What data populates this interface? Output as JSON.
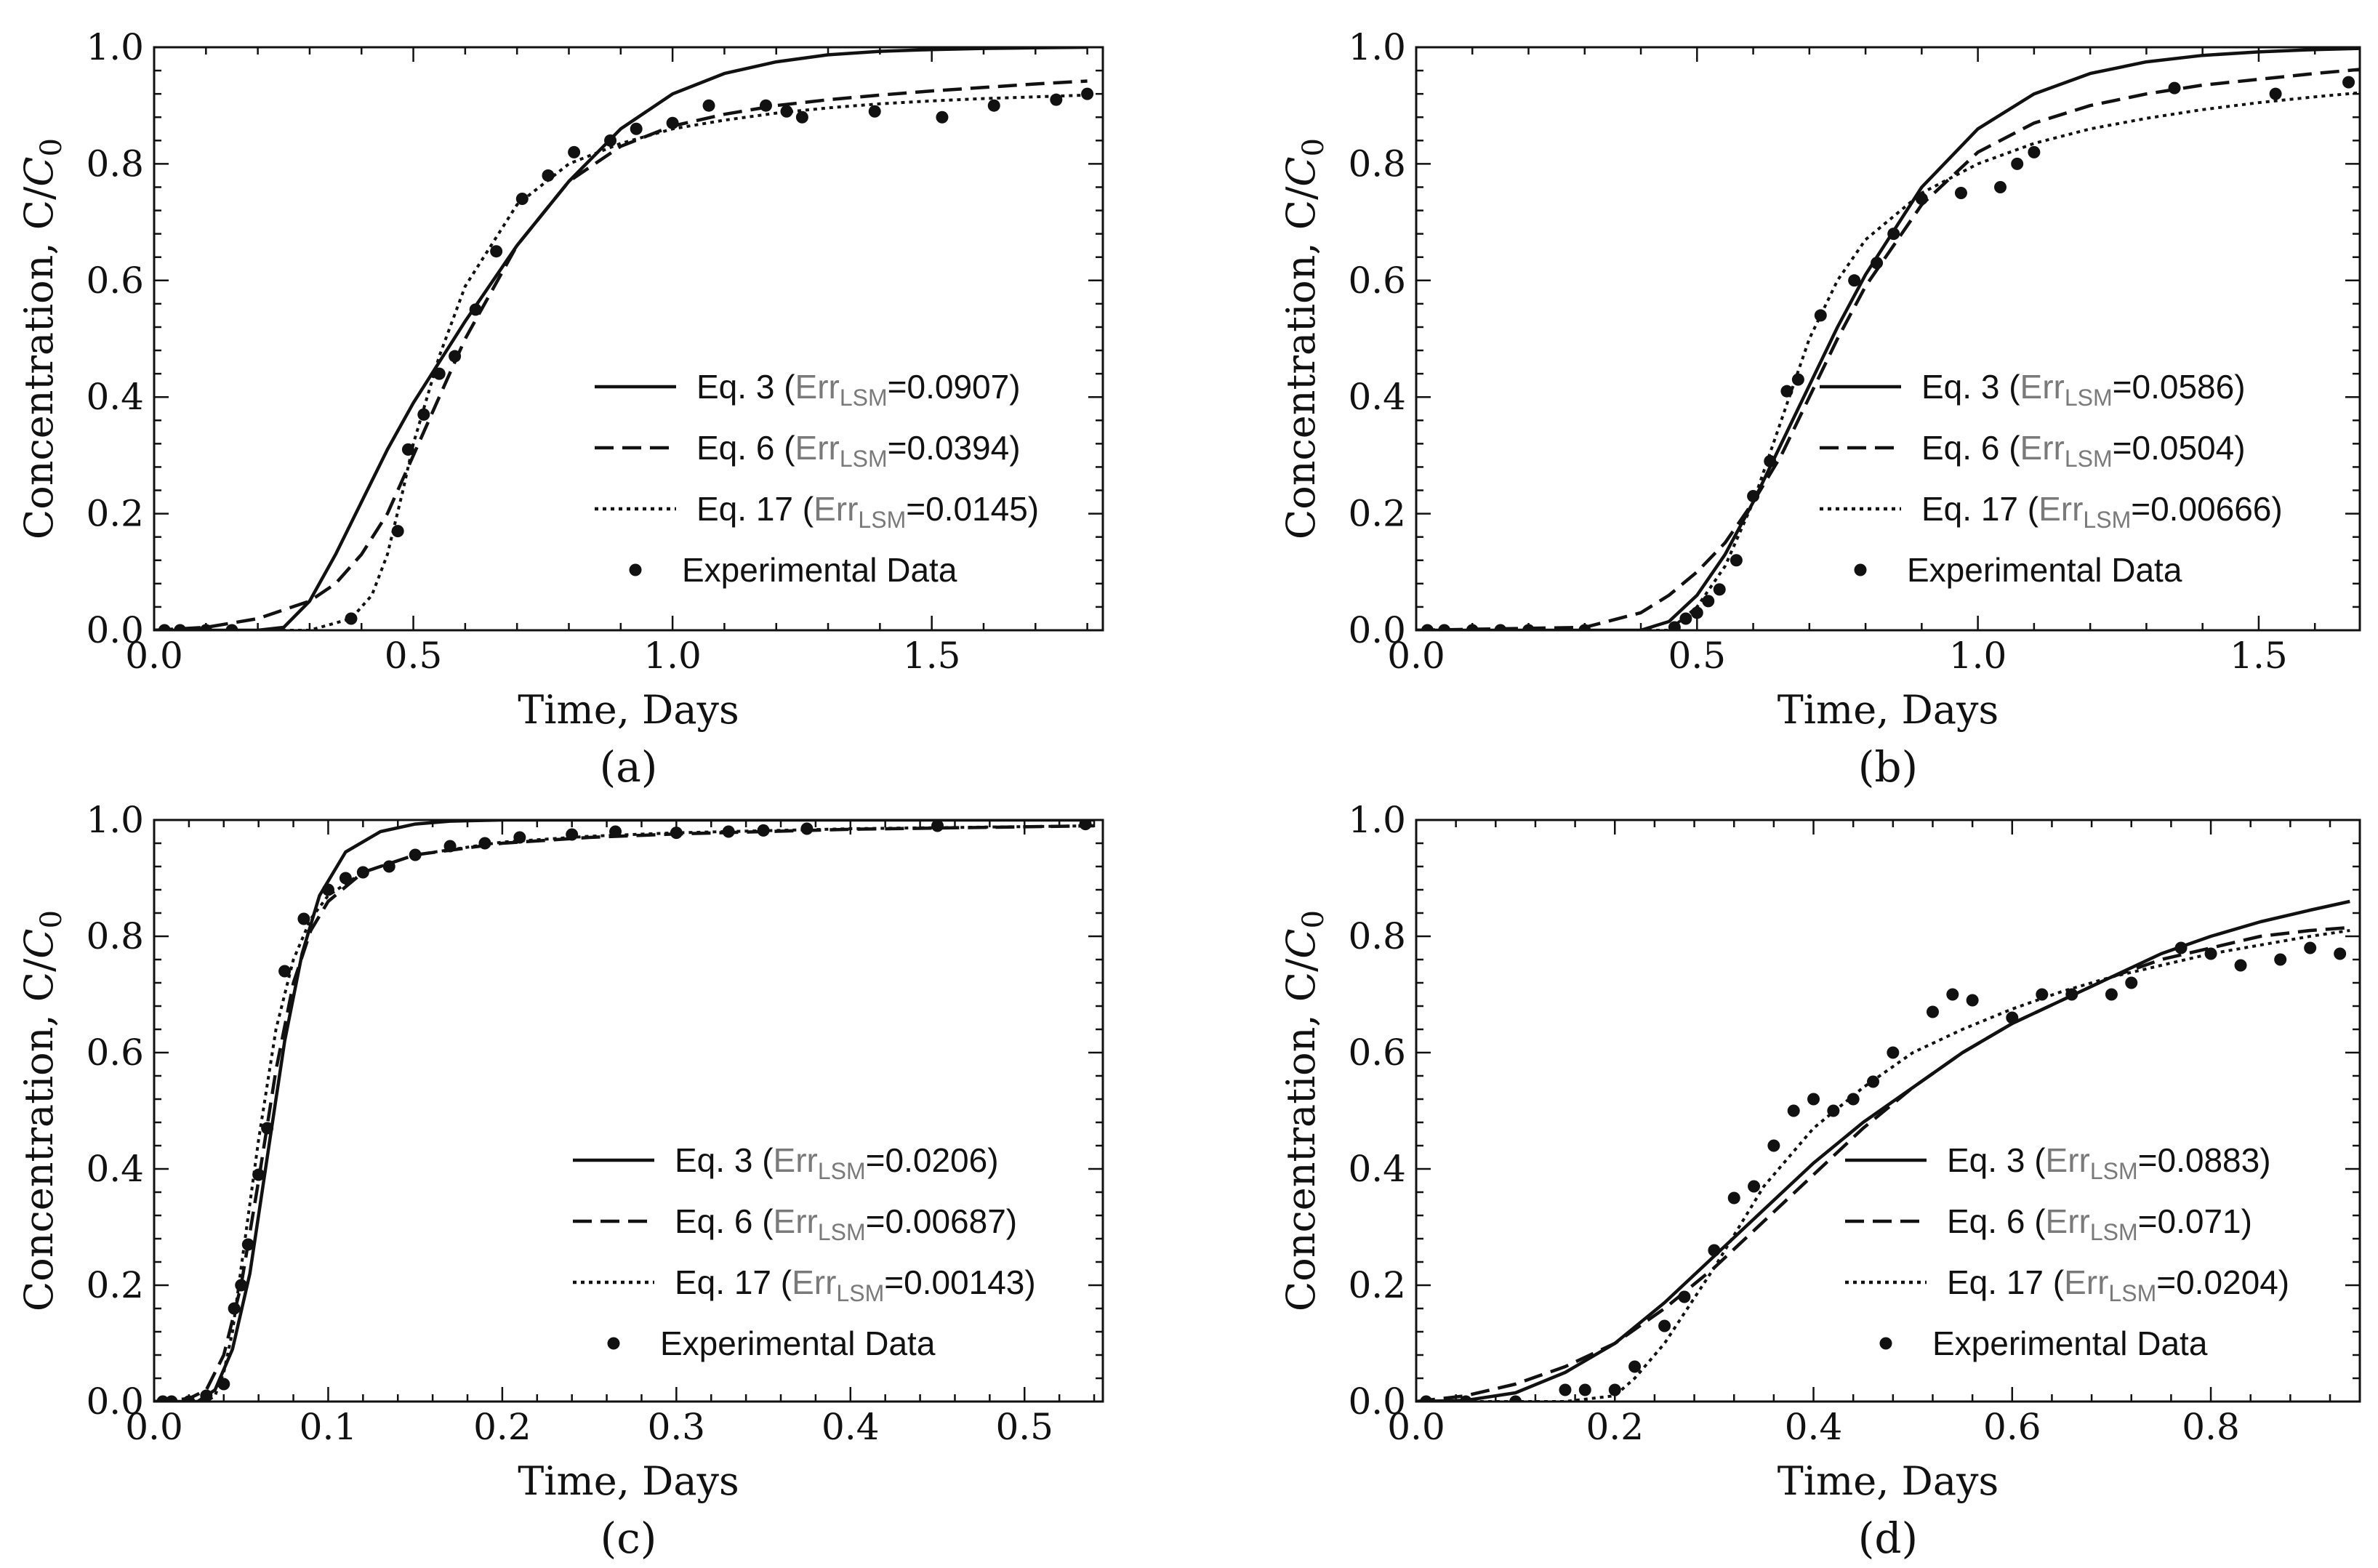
{
  "chart_data": [
    {
      "panel": "(a)",
      "type": "line",
      "xlabel": "Time, Days",
      "ylabel_text": "Concentration, C/",
      "ylabel_symbol": "C",
      "ylabel_sub": "0",
      "xlim": [
        0,
        1.83
      ],
      "ylim": [
        0,
        1.0
      ],
      "xticks": [
        0.0,
        0.5,
        1.0,
        1.5
      ],
      "xtick_labels": [
        "0.0",
        "0.5",
        "1.0",
        "1.5"
      ],
      "yticks": [
        0.0,
        0.2,
        0.4,
        0.6,
        0.8,
        1.0
      ],
      "ytick_labels": [
        "0.0",
        "0.2",
        "0.4",
        "0.6",
        "0.8",
        "1.0"
      ],
      "legend_position": "lower-right",
      "series": [
        {
          "name": "Eq. 3",
          "err_value": "0.0907",
          "style": "solid",
          "x": [
            0,
            0.2,
            0.25,
            0.3,
            0.35,
            0.4,
            0.45,
            0.5,
            0.55,
            0.6,
            0.7,
            0.8,
            0.9,
            1.0,
            1.1,
            1.2,
            1.3,
            1.4,
            1.5,
            1.6,
            1.7,
            1.8
          ],
          "y": [
            0,
            0,
            0.005,
            0.05,
            0.13,
            0.22,
            0.31,
            0.39,
            0.46,
            0.53,
            0.66,
            0.77,
            0.86,
            0.92,
            0.955,
            0.975,
            0.987,
            0.993,
            0.996,
            0.998,
            0.999,
            1.0
          ]
        },
        {
          "name": "Eq. 6",
          "err_value": "0.0394",
          "style": "dashed",
          "x": [
            0,
            0.1,
            0.2,
            0.3,
            0.35,
            0.4,
            0.45,
            0.5,
            0.55,
            0.6,
            0.7,
            0.8,
            0.9,
            1.0,
            1.1,
            1.2,
            1.3,
            1.4,
            1.5,
            1.6,
            1.7,
            1.8
          ],
          "y": [
            0,
            0.005,
            0.02,
            0.05,
            0.08,
            0.13,
            0.2,
            0.3,
            0.4,
            0.5,
            0.66,
            0.77,
            0.83,
            0.865,
            0.885,
            0.9,
            0.91,
            0.918,
            0.925,
            0.931,
            0.937,
            0.942
          ]
        },
        {
          "name": "Eq. 17",
          "err_value": "0.0145",
          "style": "dotted",
          "x": [
            0,
            0.3,
            0.38,
            0.42,
            0.45,
            0.48,
            0.5,
            0.55,
            0.6,
            0.7,
            0.8,
            0.9,
            1.0,
            1.1,
            1.2,
            1.3,
            1.4,
            1.5,
            1.6,
            1.7,
            1.8
          ],
          "y": [
            0,
            0,
            0.02,
            0.06,
            0.13,
            0.24,
            0.32,
            0.47,
            0.59,
            0.73,
            0.8,
            0.835,
            0.86,
            0.875,
            0.887,
            0.896,
            0.903,
            0.908,
            0.912,
            0.915,
            0.918
          ]
        }
      ],
      "data_series": {
        "name": "Experimental Data",
        "x": [
          0.02,
          0.05,
          0.1,
          0.15,
          0.38,
          0.47,
          0.49,
          0.52,
          0.55,
          0.58,
          0.62,
          0.66,
          0.71,
          0.76,
          0.81,
          0.88,
          0.93,
          1.0,
          1.07,
          1.18,
          1.22,
          1.25,
          1.39,
          1.52,
          1.62,
          1.74,
          1.8
        ],
        "y": [
          0.0,
          0.0,
          0.0,
          0.0,
          0.02,
          0.17,
          0.31,
          0.37,
          0.44,
          0.47,
          0.55,
          0.65,
          0.74,
          0.78,
          0.82,
          0.84,
          0.86,
          0.87,
          0.9,
          0.9,
          0.89,
          0.88,
          0.89,
          0.88,
          0.9,
          0.91,
          0.92
        ]
      }
    },
    {
      "panel": "(b)",
      "type": "line",
      "xlabel": "Time, Days",
      "ylabel_text": "Concentration, C/",
      "ylabel_symbol": "C",
      "ylabel_sub": "0",
      "xlim": [
        0,
        1.68
      ],
      "ylim": [
        0,
        1.0
      ],
      "xticks": [
        0.0,
        0.5,
        1.0,
        1.5
      ],
      "xtick_labels": [
        "0.0",
        "0.5",
        "1.0",
        "1.5"
      ],
      "yticks": [
        0.0,
        0.2,
        0.4,
        0.6,
        0.8,
        1.0
      ],
      "ytick_labels": [
        "0.0",
        "0.2",
        "0.4",
        "0.6",
        "0.8",
        "1.0"
      ],
      "legend_position": "lower-right",
      "series": [
        {
          "name": "Eq. 3",
          "err_value": "0.0586",
          "style": "solid",
          "x": [
            0,
            0.4,
            0.45,
            0.5,
            0.55,
            0.6,
            0.65,
            0.7,
            0.75,
            0.8,
            0.9,
            1.0,
            1.1,
            1.2,
            1.3,
            1.4,
            1.5,
            1.6,
            1.68
          ],
          "y": [
            0,
            0,
            0.015,
            0.06,
            0.13,
            0.22,
            0.32,
            0.42,
            0.52,
            0.61,
            0.76,
            0.86,
            0.92,
            0.955,
            0.975,
            0.986,
            0.992,
            0.996,
            0.998
          ]
        },
        {
          "name": "Eq. 6",
          "err_value": "0.0504",
          "style": "dashed",
          "x": [
            0,
            0.3,
            0.4,
            0.45,
            0.5,
            0.55,
            0.6,
            0.65,
            0.7,
            0.75,
            0.8,
            0.9,
            1.0,
            1.1,
            1.2,
            1.3,
            1.4,
            1.5,
            1.6,
            1.68
          ],
          "y": [
            0,
            0.005,
            0.03,
            0.06,
            0.1,
            0.15,
            0.22,
            0.3,
            0.4,
            0.5,
            0.59,
            0.73,
            0.82,
            0.87,
            0.9,
            0.92,
            0.935,
            0.945,
            0.955,
            0.962
          ]
        },
        {
          "name": "Eq. 17",
          "err_value": "0.00666",
          "style": "dotted",
          "x": [
            0,
            0.45,
            0.5,
            0.55,
            0.6,
            0.65,
            0.7,
            0.75,
            0.8,
            0.9,
            1.0,
            1.1,
            1.2,
            1.3,
            1.4,
            1.5,
            1.6,
            1.68
          ],
          "y": [
            0,
            0,
            0.04,
            0.11,
            0.22,
            0.36,
            0.5,
            0.6,
            0.67,
            0.75,
            0.8,
            0.835,
            0.86,
            0.878,
            0.893,
            0.905,
            0.915,
            0.922
          ]
        }
      ],
      "data_series": {
        "name": "Experimental Data",
        "x": [
          0.02,
          0.05,
          0.1,
          0.15,
          0.2,
          0.3,
          0.46,
          0.48,
          0.5,
          0.52,
          0.54,
          0.57,
          0.6,
          0.63,
          0.66,
          0.68,
          0.72,
          0.78,
          0.82,
          0.85,
          0.9,
          0.97,
          1.04,
          1.07,
          1.1,
          1.35,
          1.53,
          1.66
        ],
        "y": [
          0.0,
          0.0,
          0.0,
          0.0,
          0.0,
          0.0,
          0.005,
          0.02,
          0.03,
          0.05,
          0.07,
          0.12,
          0.23,
          0.29,
          0.41,
          0.43,
          0.54,
          0.6,
          0.63,
          0.68,
          0.74,
          0.75,
          0.76,
          0.8,
          0.82,
          0.93,
          0.92,
          0.94
        ]
      }
    },
    {
      "panel": "(c)",
      "type": "line",
      "xlabel": "Time, Days",
      "ylabel_text": "Concentration, C/",
      "ylabel_symbol": "C",
      "ylabel_sub": "0",
      "xlim": [
        0,
        0.545
      ],
      "ylim": [
        0,
        1.0
      ],
      "xticks": [
        0.0,
        0.1,
        0.2,
        0.3,
        0.4,
        0.5
      ],
      "xtick_labels": [
        "0.0",
        "0.1",
        "0.2",
        "0.3",
        "0.4",
        "0.5"
      ],
      "yticks": [
        0.0,
        0.2,
        0.4,
        0.6,
        0.8,
        1.0
      ],
      "ytick_labels": [
        "0.0",
        "0.2",
        "0.4",
        "0.6",
        "0.8",
        "1.0"
      ],
      "legend_position": "lower-right",
      "series": [
        {
          "name": "Eq. 3",
          "err_value": "0.0206",
          "style": "solid",
          "x": [
            0,
            0.025,
            0.035,
            0.045,
            0.055,
            0.065,
            0.075,
            0.085,
            0.095,
            0.11,
            0.13,
            0.15,
            0.17,
            0.2,
            0.25,
            0.3,
            0.4,
            0.54
          ],
          "y": [
            0,
            0,
            0.02,
            0.09,
            0.22,
            0.42,
            0.62,
            0.77,
            0.87,
            0.945,
            0.98,
            0.993,
            0.998,
            1.0,
            1.0,
            1.0,
            1.0,
            1.0
          ]
        },
        {
          "name": "Eq. 6",
          "err_value": "0.00687",
          "style": "dashed",
          "x": [
            0,
            0.02,
            0.03,
            0.04,
            0.05,
            0.06,
            0.07,
            0.08,
            0.09,
            0.1,
            0.12,
            0.15,
            0.2,
            0.25,
            0.3,
            0.4,
            0.54
          ],
          "y": [
            0,
            0.005,
            0.02,
            0.08,
            0.2,
            0.38,
            0.57,
            0.72,
            0.81,
            0.86,
            0.91,
            0.94,
            0.96,
            0.97,
            0.976,
            0.984,
            0.99
          ]
        },
        {
          "name": "Eq. 17",
          "err_value": "0.00143",
          "style": "dotted",
          "x": [
            0,
            0.03,
            0.035,
            0.04,
            0.045,
            0.05,
            0.06,
            0.07,
            0.08,
            0.09,
            0.1,
            0.12,
            0.15,
            0.2,
            0.25,
            0.3,
            0.4,
            0.54
          ],
          "y": [
            0,
            0,
            0.01,
            0.05,
            0.12,
            0.23,
            0.45,
            0.64,
            0.76,
            0.83,
            0.87,
            0.91,
            0.94,
            0.962,
            0.972,
            0.978,
            0.985,
            0.99
          ]
        }
      ],
      "data_series": {
        "name": "Experimental Data",
        "x": [
          0.005,
          0.01,
          0.02,
          0.03,
          0.04,
          0.046,
          0.05,
          0.054,
          0.06,
          0.065,
          0.075,
          0.086,
          0.1,
          0.11,
          0.12,
          0.135,
          0.15,
          0.17,
          0.19,
          0.21,
          0.24,
          0.265,
          0.3,
          0.33,
          0.35,
          0.375,
          0.45,
          0.535
        ],
        "y": [
          0.0,
          0.0,
          0.0,
          0.01,
          0.03,
          0.16,
          0.2,
          0.27,
          0.39,
          0.47,
          0.74,
          0.83,
          0.88,
          0.9,
          0.91,
          0.92,
          0.94,
          0.955,
          0.96,
          0.97,
          0.975,
          0.98,
          0.978,
          0.98,
          0.982,
          0.985,
          0.99,
          0.993
        ]
      }
    },
    {
      "panel": "(d)",
      "type": "line",
      "xlabel": "Time, Days",
      "ylabel_text": "Concentration, C/",
      "ylabel_symbol": "C",
      "ylabel_sub": "0",
      "xlim": [
        0,
        0.95
      ],
      "ylim": [
        0,
        1.0
      ],
      "xticks": [
        0.0,
        0.2,
        0.4,
        0.6,
        0.8
      ],
      "xtick_labels": [
        "0.0",
        "0.2",
        "0.4",
        "0.6",
        "0.8"
      ],
      "yticks": [
        0.0,
        0.2,
        0.4,
        0.6,
        0.8,
        1.0
      ],
      "ytick_labels": [
        "0.0",
        "0.2",
        "0.4",
        "0.6",
        "0.8",
        "1.0"
      ],
      "legend_position": "lower-right",
      "series": [
        {
          "name": "Eq. 3",
          "err_value": "0.0883",
          "style": "solid",
          "x": [
            0,
            0.05,
            0.1,
            0.15,
            0.2,
            0.25,
            0.3,
            0.35,
            0.4,
            0.45,
            0.5,
            0.55,
            0.6,
            0.65,
            0.7,
            0.75,
            0.8,
            0.85,
            0.9,
            0.94
          ],
          "y": [
            0,
            0.002,
            0.015,
            0.05,
            0.1,
            0.17,
            0.25,
            0.33,
            0.41,
            0.48,
            0.54,
            0.6,
            0.65,
            0.69,
            0.73,
            0.77,
            0.8,
            0.825,
            0.845,
            0.86
          ]
        },
        {
          "name": "Eq. 6",
          "err_value": "0.071",
          "style": "dashed",
          "x": [
            0,
            0.05,
            0.1,
            0.15,
            0.2,
            0.25,
            0.3,
            0.35,
            0.4,
            0.45,
            0.5,
            0.55,
            0.6,
            0.65,
            0.7,
            0.75,
            0.8,
            0.85,
            0.9,
            0.94
          ],
          "y": [
            0,
            0.01,
            0.03,
            0.06,
            0.1,
            0.16,
            0.23,
            0.31,
            0.39,
            0.47,
            0.54,
            0.6,
            0.65,
            0.69,
            0.73,
            0.76,
            0.78,
            0.8,
            0.81,
            0.815
          ]
        },
        {
          "name": "Eq. 17",
          "err_value": "0.0204",
          "style": "dotted",
          "x": [
            0,
            0.15,
            0.2,
            0.22,
            0.25,
            0.3,
            0.35,
            0.4,
            0.45,
            0.5,
            0.55,
            0.6,
            0.65,
            0.7,
            0.75,
            0.8,
            0.85,
            0.9,
            0.94
          ],
          "y": [
            0,
            0,
            0.01,
            0.04,
            0.1,
            0.23,
            0.37,
            0.47,
            0.54,
            0.6,
            0.64,
            0.675,
            0.705,
            0.73,
            0.75,
            0.77,
            0.785,
            0.8,
            0.81
          ]
        }
      ],
      "data_series": {
        "name": "Experimental Data",
        "x": [
          0.01,
          0.05,
          0.1,
          0.15,
          0.17,
          0.2,
          0.22,
          0.25,
          0.27,
          0.3,
          0.32,
          0.34,
          0.36,
          0.38,
          0.4,
          0.42,
          0.44,
          0.46,
          0.48,
          0.52,
          0.54,
          0.56,
          0.6,
          0.63,
          0.66,
          0.7,
          0.72,
          0.77,
          0.8,
          0.83,
          0.87,
          0.9,
          0.93
        ],
        "y": [
          0.0,
          0.0,
          0.0,
          0.02,
          0.02,
          0.02,
          0.06,
          0.13,
          0.18,
          0.26,
          0.35,
          0.37,
          0.44,
          0.5,
          0.52,
          0.5,
          0.52,
          0.55,
          0.6,
          0.67,
          0.7,
          0.69,
          0.66,
          0.7,
          0.7,
          0.7,
          0.72,
          0.78,
          0.77,
          0.75,
          0.76,
          0.78,
          0.77
        ]
      }
    }
  ]
}
